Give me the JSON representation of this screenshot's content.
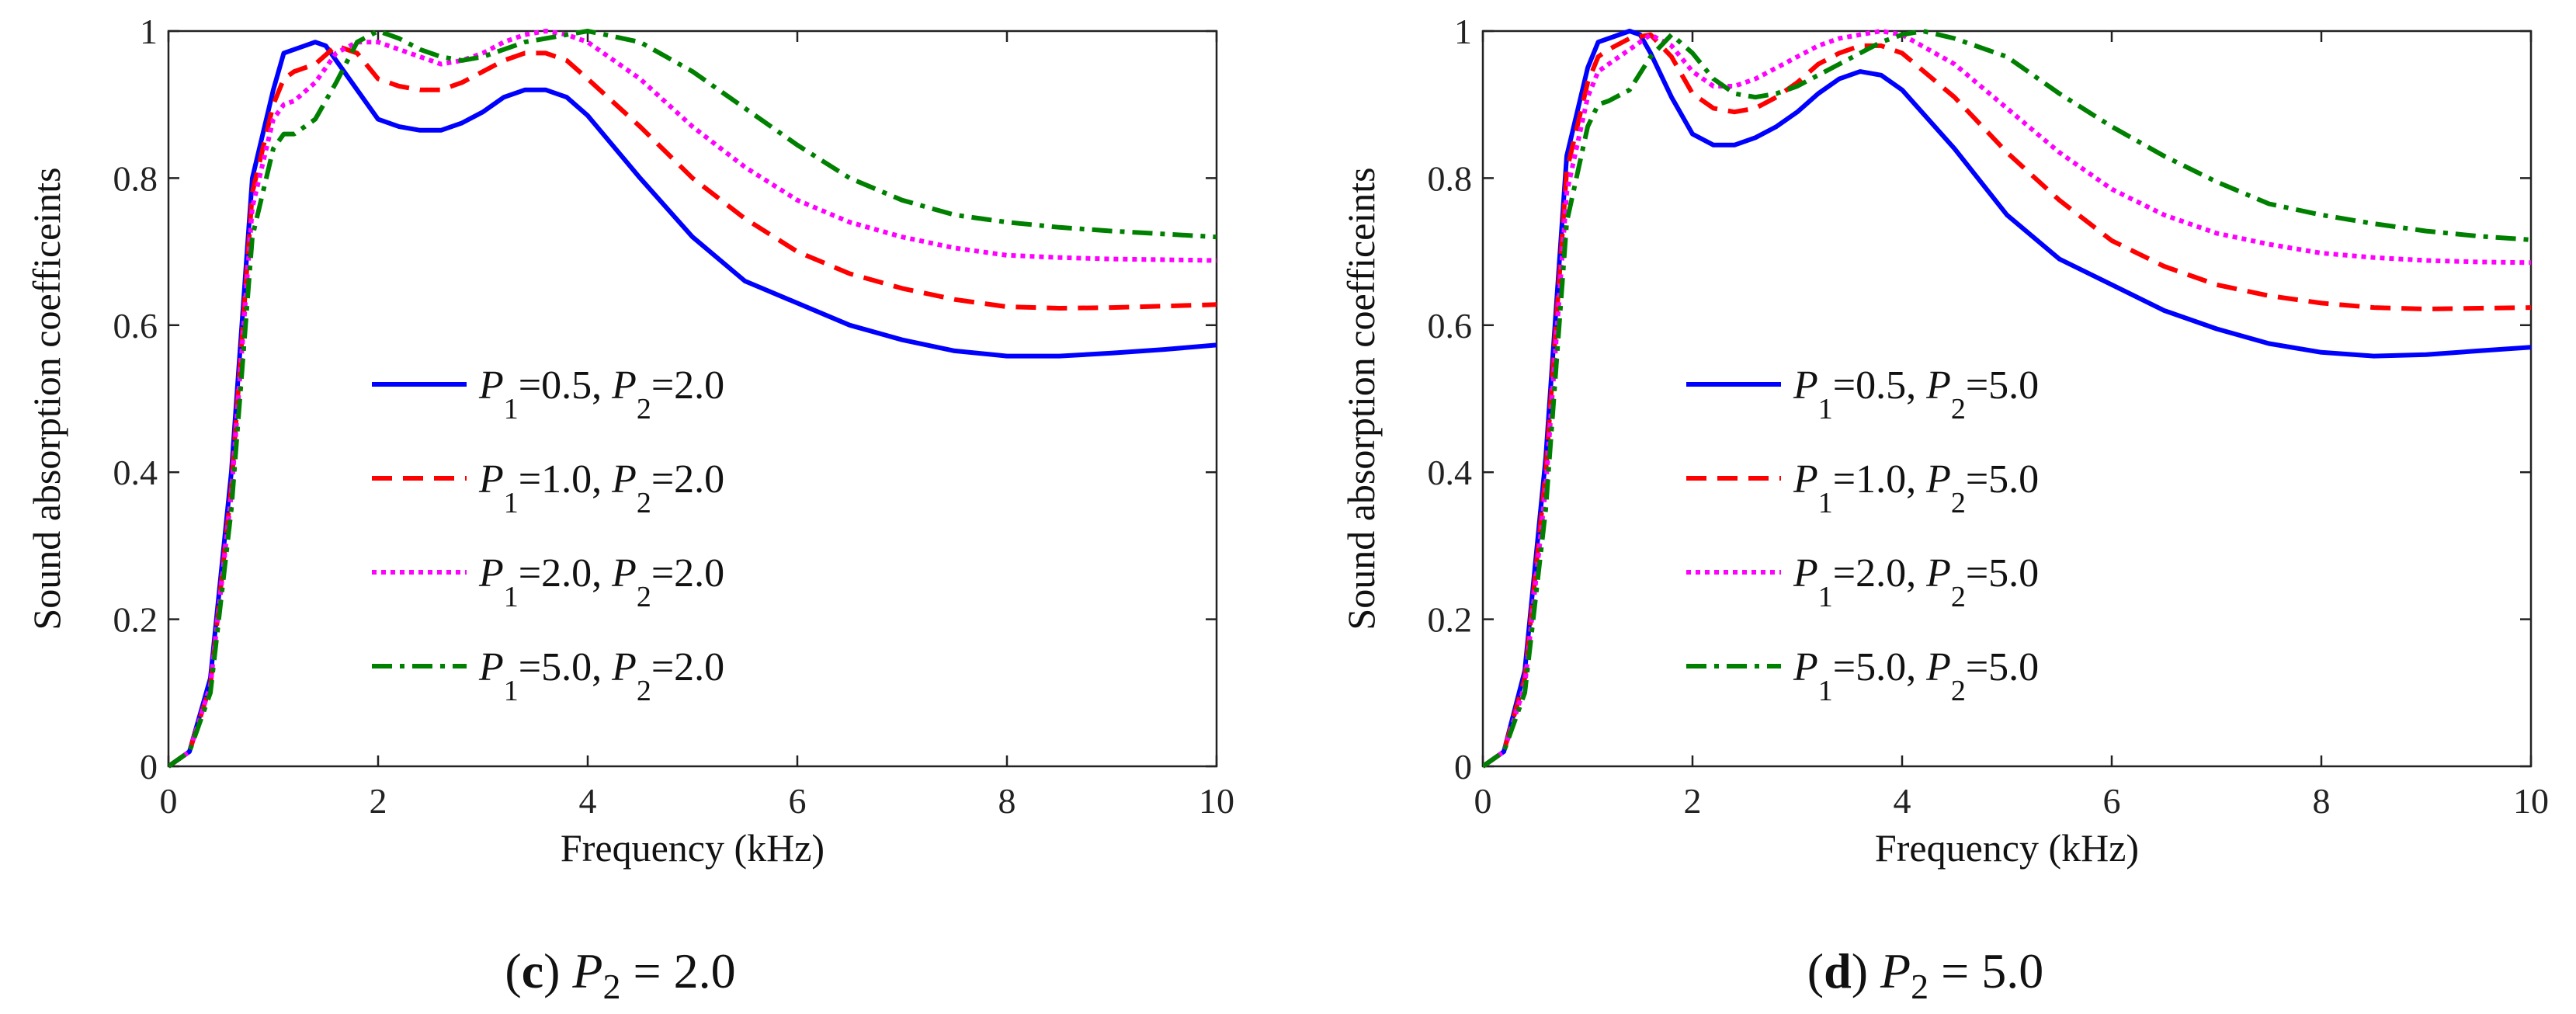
{
  "chart_data": [
    {
      "type": "line",
      "caption": {
        "letter": "c",
        "param": "P",
        "sub": "2",
        "value": "= 2.0"
      },
      "xlabel": "Frequency (kHz)",
      "ylabel": "Sound absorption coefficeints",
      "xlim": [
        0,
        10
      ],
      "ylim": [
        0,
        1
      ],
      "xticks": [
        "0",
        "2",
        "4",
        "6",
        "8",
        "10"
      ],
      "yticks": [
        "0",
        "0.2",
        "0.4",
        "0.6",
        "0.8",
        "1"
      ],
      "grid": false,
      "legend_position": "center-left",
      "series": [
        {
          "label": {
            "p1": "=0.5,",
            "p2": "=2.0"
          },
          "color": "#0000ff",
          "dash": "solid",
          "x": [
            0,
            0.2,
            0.4,
            0.6,
            0.8,
            1.0,
            1.1,
            1.2,
            1.4,
            1.5,
            1.6,
            1.8,
            2.0,
            2.2,
            2.4,
            2.6,
            2.8,
            3.0,
            3.2,
            3.4,
            3.6,
            3.8,
            4.0,
            4.5,
            5.0,
            5.5,
            6.0,
            6.5,
            7.0,
            7.5,
            8.0,
            8.5,
            9.0,
            9.5,
            10.0
          ],
          "y": [
            0,
            0.02,
            0.12,
            0.4,
            0.8,
            0.92,
            0.97,
            0.975,
            0.985,
            0.98,
            0.96,
            0.92,
            0.88,
            0.87,
            0.865,
            0.865,
            0.875,
            0.89,
            0.91,
            0.92,
            0.92,
            0.91,
            0.885,
            0.8,
            0.72,
            0.66,
            0.63,
            0.6,
            0.58,
            0.565,
            0.558,
            0.558,
            0.562,
            0.567,
            0.573
          ]
        },
        {
          "label": {
            "p1": "=1.0,",
            "p2": "=2.0"
          },
          "color": "#ff0000",
          "dash": "dashed",
          "x": [
            0,
            0.2,
            0.4,
            0.6,
            0.8,
            1.0,
            1.1,
            1.2,
            1.4,
            1.6,
            1.8,
            2.0,
            2.2,
            2.4,
            2.6,
            2.8,
            3.0,
            3.2,
            3.4,
            3.6,
            3.8,
            4.0,
            4.5,
            5.0,
            5.5,
            6.0,
            6.5,
            7.0,
            7.5,
            8.0,
            8.5,
            9.0,
            9.5,
            10.0
          ],
          "y": [
            0,
            0.02,
            0.11,
            0.38,
            0.78,
            0.9,
            0.935,
            0.945,
            0.955,
            0.98,
            0.97,
            0.935,
            0.925,
            0.92,
            0.92,
            0.93,
            0.945,
            0.96,
            0.97,
            0.97,
            0.96,
            0.935,
            0.87,
            0.8,
            0.745,
            0.7,
            0.67,
            0.65,
            0.635,
            0.625,
            0.623,
            0.624,
            0.626,
            0.628
          ]
        },
        {
          "label": {
            "p1": "=2.0,",
            "p2": "=2.0"
          },
          "color": "#ff00ff",
          "dash": "dotted",
          "x": [
            0,
            0.2,
            0.4,
            0.6,
            0.8,
            1.0,
            1.1,
            1.2,
            1.4,
            1.6,
            1.8,
            2.0,
            2.2,
            2.4,
            2.6,
            2.8,
            3.0,
            3.2,
            3.4,
            3.6,
            3.8,
            4.0,
            4.5,
            5.0,
            5.5,
            6.0,
            6.5,
            7.0,
            7.5,
            8.0,
            8.5,
            9.0,
            9.5,
            10.0
          ],
          "y": [
            0,
            0.02,
            0.11,
            0.37,
            0.76,
            0.88,
            0.9,
            0.905,
            0.93,
            0.97,
            0.985,
            0.985,
            0.975,
            0.965,
            0.955,
            0.96,
            0.97,
            0.985,
            0.995,
            1.0,
            0.995,
            0.985,
            0.935,
            0.87,
            0.815,
            0.77,
            0.74,
            0.72,
            0.705,
            0.695,
            0.692,
            0.69,
            0.689,
            0.688
          ]
        },
        {
          "label": {
            "p1": "=5.0,",
            "p2": "=2.0"
          },
          "color": "#008000",
          "dash": "dashdot",
          "x": [
            0,
            0.2,
            0.4,
            0.6,
            0.8,
            1.0,
            1.1,
            1.2,
            1.4,
            1.6,
            1.8,
            2.0,
            2.2,
            2.4,
            2.6,
            2.8,
            3.0,
            3.2,
            3.4,
            3.6,
            3.8,
            4.0,
            4.5,
            5.0,
            5.5,
            6.0,
            6.5,
            7.0,
            7.5,
            8.0,
            8.5,
            9.0,
            9.5,
            10.0
          ],
          "y": [
            0,
            0.02,
            0.1,
            0.35,
            0.72,
            0.84,
            0.86,
            0.86,
            0.88,
            0.93,
            0.985,
            1.0,
            0.99,
            0.975,
            0.965,
            0.96,
            0.965,
            0.975,
            0.985,
            0.99,
            0.995,
            1.0,
            0.985,
            0.945,
            0.895,
            0.845,
            0.8,
            0.77,
            0.75,
            0.74,
            0.733,
            0.728,
            0.724,
            0.72
          ]
        }
      ]
    },
    {
      "type": "line",
      "caption": {
        "letter": "d",
        "param": "P",
        "sub": "2",
        "value": "= 5.0"
      },
      "xlabel": "Frequency (kHz)",
      "ylabel": "Sound absorption coefficeints",
      "xlim": [
        0,
        10
      ],
      "ylim": [
        0,
        1
      ],
      "xticks": [
        "0",
        "2",
        "4",
        "6",
        "8",
        "10"
      ],
      "yticks": [
        "0",
        "0.2",
        "0.4",
        "0.6",
        "0.8",
        "1"
      ],
      "grid": false,
      "legend_position": "center-left",
      "series": [
        {
          "label": {
            "p1": "=0.5,",
            "p2": "=5.0"
          },
          "color": "#0000ff",
          "dash": "solid",
          "x": [
            0,
            0.2,
            0.4,
            0.6,
            0.8,
            1.0,
            1.1,
            1.2,
            1.4,
            1.5,
            1.6,
            1.8,
            2.0,
            2.2,
            2.4,
            2.6,
            2.8,
            3.0,
            3.2,
            3.4,
            3.6,
            3.8,
            4.0,
            4.5,
            5.0,
            5.5,
            6.0,
            6.5,
            7.0,
            7.5,
            8.0,
            8.5,
            9.0,
            9.5,
            10.0
          ],
          "y": [
            0,
            0.02,
            0.13,
            0.42,
            0.83,
            0.95,
            0.985,
            0.99,
            1.0,
            0.995,
            0.97,
            0.91,
            0.86,
            0.845,
            0.845,
            0.855,
            0.87,
            0.89,
            0.915,
            0.935,
            0.945,
            0.94,
            0.92,
            0.84,
            0.75,
            0.69,
            0.655,
            0.62,
            0.595,
            0.575,
            0.563,
            0.558,
            0.56,
            0.565,
            0.57
          ]
        },
        {
          "label": {
            "p1": "=1.0,",
            "p2": "=5.0"
          },
          "color": "#ff0000",
          "dash": "dashed",
          "x": [
            0,
            0.2,
            0.4,
            0.6,
            0.8,
            1.0,
            1.1,
            1.2,
            1.4,
            1.6,
            1.8,
            2.0,
            2.2,
            2.4,
            2.6,
            2.8,
            3.0,
            3.2,
            3.4,
            3.6,
            3.8,
            4.0,
            4.5,
            5.0,
            5.5,
            6.0,
            6.5,
            7.0,
            7.5,
            8.0,
            8.5,
            9.0,
            9.5,
            10.0
          ],
          "y": [
            0,
            0.02,
            0.12,
            0.4,
            0.81,
            0.93,
            0.965,
            0.975,
            0.99,
            0.995,
            0.965,
            0.915,
            0.895,
            0.89,
            0.895,
            0.91,
            0.93,
            0.955,
            0.97,
            0.98,
            0.98,
            0.97,
            0.91,
            0.835,
            0.77,
            0.715,
            0.68,
            0.655,
            0.64,
            0.63,
            0.624,
            0.622,
            0.623,
            0.624
          ]
        },
        {
          "label": {
            "p1": "=2.0,",
            "p2": "=5.0"
          },
          "color": "#ff00ff",
          "dash": "dotted",
          "x": [
            0,
            0.2,
            0.4,
            0.6,
            0.8,
            1.0,
            1.1,
            1.2,
            1.4,
            1.6,
            1.8,
            2.0,
            2.2,
            2.4,
            2.6,
            2.8,
            3.0,
            3.2,
            3.4,
            3.6,
            3.8,
            4.0,
            4.5,
            5.0,
            5.5,
            6.0,
            6.5,
            7.0,
            7.5,
            8.0,
            8.5,
            9.0,
            9.5,
            10.0
          ],
          "y": [
            0,
            0.02,
            0.11,
            0.38,
            0.78,
            0.91,
            0.945,
            0.955,
            0.975,
            0.995,
            0.98,
            0.945,
            0.925,
            0.925,
            0.935,
            0.95,
            0.965,
            0.98,
            0.99,
            0.995,
            1.0,
            0.995,
            0.955,
            0.895,
            0.835,
            0.785,
            0.75,
            0.725,
            0.71,
            0.698,
            0.692,
            0.688,
            0.686,
            0.685
          ]
        },
        {
          "label": {
            "p1": "=5.0,",
            "p2": "=5.0"
          },
          "color": "#008000",
          "dash": "dashdot",
          "x": [
            0,
            0.2,
            0.4,
            0.6,
            0.8,
            1.0,
            1.1,
            1.2,
            1.4,
            1.6,
            1.8,
            2.0,
            2.2,
            2.4,
            2.6,
            2.8,
            3.0,
            3.2,
            3.4,
            3.6,
            3.8,
            4.0,
            4.2,
            4.5,
            5.0,
            5.5,
            6.0,
            6.5,
            7.0,
            7.5,
            8.0,
            8.5,
            9.0,
            9.5,
            10.0
          ],
          "y": [
            0,
            0.02,
            0.1,
            0.35,
            0.74,
            0.87,
            0.9,
            0.905,
            0.92,
            0.965,
            0.995,
            0.97,
            0.935,
            0.915,
            0.91,
            0.915,
            0.925,
            0.94,
            0.955,
            0.97,
            0.985,
            0.995,
            1.0,
            0.99,
            0.965,
            0.915,
            0.87,
            0.83,
            0.795,
            0.765,
            0.75,
            0.738,
            0.728,
            0.721,
            0.716
          ]
        }
      ]
    }
  ]
}
